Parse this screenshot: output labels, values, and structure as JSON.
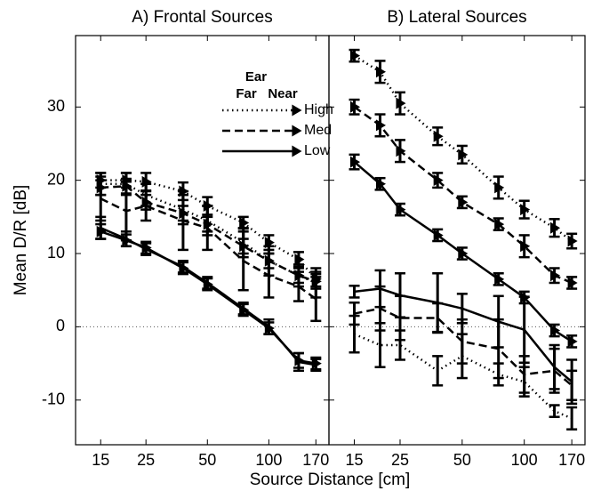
{
  "chart_data": [
    {
      "type": "line",
      "title": "A) Frontal Sources",
      "ylabel": "Mean D/R [dB]",
      "xlabel": "Source Distance [cm]",
      "legend_title": "Ear",
      "log_x": true,
      "hline": 0,
      "x": [
        15,
        20,
        25,
        38,
        50,
        75,
        100,
        140,
        170
      ],
      "xlim": [
        11.3,
        197
      ],
      "xticks": [
        15,
        25,
        50,
        100,
        170
      ],
      "ylim": [
        -16.1,
        39.75
      ],
      "yticks": [
        -10,
        0,
        10,
        20,
        30
      ],
      "series": [
        {
          "name": "High",
          "ear": "Near",
          "dash": "dotted",
          "marker": "triangle",
          "values": [
            20,
            20,
            19.8,
            18.5,
            16.5,
            14.2,
            11.5,
            9.2,
            6.5
          ],
          "errors": [
            1,
            1,
            1.2,
            1.2,
            1.2,
            0.8,
            1,
            1,
            1
          ]
        },
        {
          "name": "High",
          "ear": "Far",
          "dash": "dotted",
          "marker": "none",
          "values": [
            19.5,
            19.5,
            18,
            16,
            14.5,
            11.5,
            9,
            7,
            6
          ],
          "errors": [
            1.5,
            1.5,
            1.5,
            2,
            2,
            2,
            2,
            1.5,
            2
          ]
        },
        {
          "name": "Med",
          "ear": "Near",
          "dash": "dashed",
          "marker": "triangle",
          "values": [
            19,
            19.2,
            17,
            15.5,
            14,
            11,
            9,
            7,
            6.2
          ],
          "errors": [
            1,
            1,
            1,
            1,
            1,
            1,
            1,
            1,
            1
          ]
        },
        {
          "name": "Med",
          "ear": "Far",
          "dash": "dashed",
          "marker": "none",
          "values": [
            17.5,
            15.8,
            16.5,
            14.5,
            13.5,
            9,
            7,
            5.5,
            3.8
          ],
          "errors": [
            3,
            4,
            2,
            4,
            3,
            4,
            3,
            2,
            3
          ]
        },
        {
          "name": "Low",
          "ear": "Near",
          "dash": "solid",
          "marker": "triangle",
          "values": [
            13,
            11.8,
            10.8,
            8,
            5.8,
            2.3,
            -0.2,
            -4.6,
            -5
          ],
          "errors": [
            1,
            0.8,
            0.8,
            0.8,
            0.8,
            0.8,
            0.8,
            1,
            0.8
          ]
        },
        {
          "name": "Low",
          "ear": "Far",
          "dash": "solid",
          "marker": "none",
          "values": [
            13.5,
            12,
            10.6,
            8.2,
            6,
            2.5,
            0,
            -4.8,
            -5.2
          ],
          "errors": [
            1.5,
            1,
            0.8,
            0.8,
            0.8,
            0.8,
            1,
            1.2,
            0.8
          ]
        }
      ]
    },
    {
      "type": "line",
      "title": "B) Lateral Sources",
      "log_x": true,
      "hline": 0,
      "x": [
        15,
        20,
        25,
        38,
        50,
        75,
        100,
        140,
        170
      ],
      "xlim": [
        11.3,
        197
      ],
      "xticks": [
        15,
        25,
        50,
        100,
        170
      ],
      "ylim": [
        -16.1,
        39.75
      ],
      "series": [
        {
          "name": "High",
          "ear": "Near",
          "dash": "dotted",
          "marker": "triangle",
          "values": [
            37,
            34.8,
            30.5,
            26,
            23.5,
            19,
            16,
            13.5,
            11.7
          ],
          "errors": [
            0.8,
            1.5,
            1.5,
            1.2,
            1.2,
            1.5,
            1.2,
            1.2,
            1
          ]
        },
        {
          "name": "Med",
          "ear": "Near",
          "dash": "dashed",
          "marker": "triangle",
          "values": [
            30,
            27.5,
            24,
            20,
            17,
            14,
            11,
            7,
            6
          ],
          "errors": [
            1,
            1.5,
            1.5,
            1,
            0.8,
            0.8,
            1.5,
            1,
            0.8
          ]
        },
        {
          "name": "Low",
          "ear": "Near",
          "dash": "solid",
          "marker": "triangle",
          "values": [
            22.5,
            19.5,
            16,
            12.5,
            10,
            6.5,
            4,
            -0.5,
            -2
          ],
          "errors": [
            1,
            0.8,
            0.8,
            0.8,
            0.8,
            0.8,
            0.8,
            0.8,
            0.8
          ]
        },
        {
          "name": "Low",
          "ear": "Far",
          "dash": "solid",
          "marker": "none",
          "values": [
            4.8,
            5.2,
            4.3,
            3.3,
            2.5,
            0.7,
            -0.4,
            -5.5,
            -7.5
          ],
          "errors": [
            0.8,
            2.5,
            3,
            4,
            2,
            3.5,
            4.5,
            3,
            3
          ]
        },
        {
          "name": "Med",
          "ear": "Far",
          "dash": "dashed",
          "marker": "none",
          "values": [
            1.8,
            2.5,
            1.2,
            1.2,
            -2,
            -3,
            -6.5,
            -6,
            -8
          ],
          "errors": [
            1.5,
            3,
            3,
            2,
            3,
            4,
            2.5,
            3,
            2
          ]
        },
        {
          "name": "High",
          "ear": "Far",
          "dash": "dotted",
          "marker": "none",
          "values": [
            -1,
            -2.5,
            -2.5,
            -6,
            -4,
            -6.5,
            -7.5,
            -11.5,
            -12.5
          ],
          "errors": [
            2.5,
            3,
            2,
            2,
            3,
            1.5,
            2,
            0.8,
            1.5
          ]
        }
      ]
    }
  ]
}
